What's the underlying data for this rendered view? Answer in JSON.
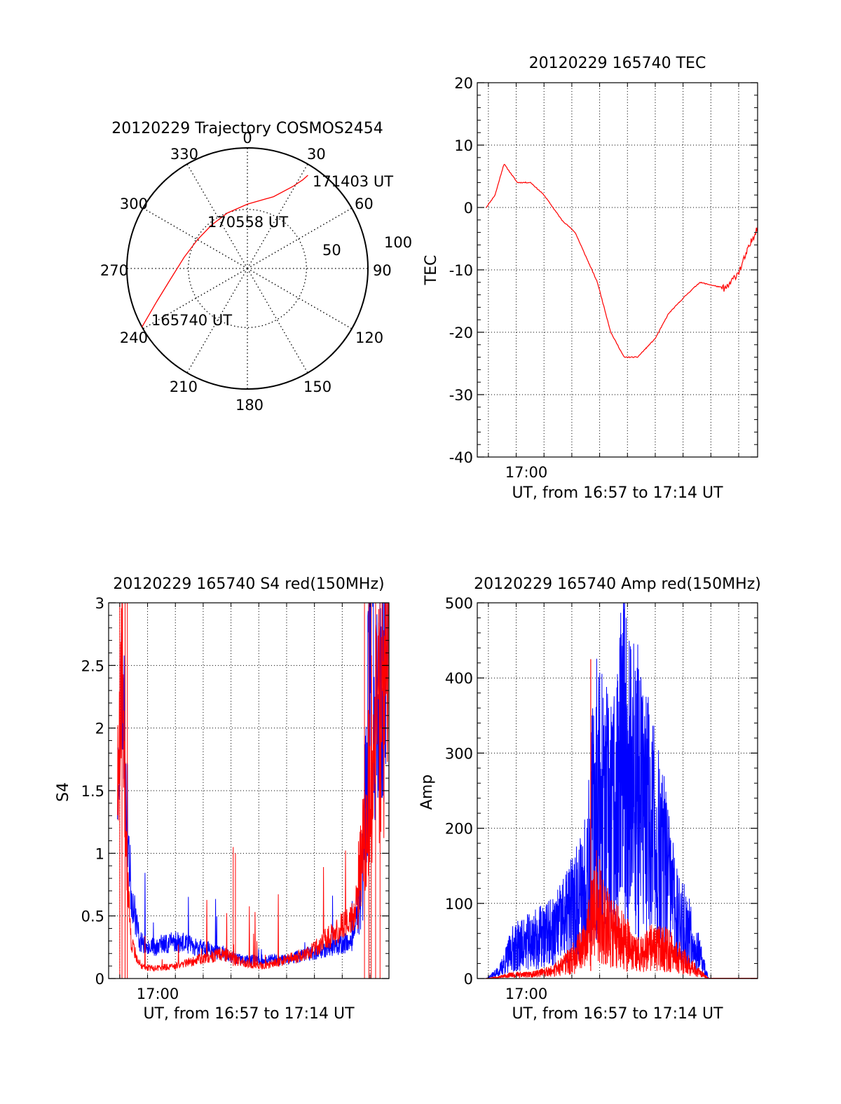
{
  "chart_data": [
    {
      "type": "polar",
      "title": "20120229 Trajectory COSMOS2454",
      "azimuth_labels": [
        "0",
        "30",
        "60",
        "90",
        "120",
        "150",
        "180",
        "210",
        "240",
        "270",
        "300",
        "330"
      ],
      "radial_labels": [
        "50",
        "100"
      ],
      "series": [
        {
          "color": "#ff0000",
          "points_az_el": [
            [
              241,
              0
            ],
            [
              250,
              18
            ],
            [
              262,
              32
            ],
            [
              280,
              42
            ],
            [
              300,
              47
            ],
            [
              320,
              48
            ],
            [
              340,
              46
            ],
            [
              0,
              42
            ],
            [
              20,
              33
            ],
            [
              29,
              20
            ],
            [
              32,
              12
            ],
            [
              33,
              7
            ]
          ]
        }
      ],
      "annotations": [
        {
          "text": "171403 UT",
          "az": 33,
          "el": 7
        },
        {
          "text": "170558 UT",
          "az": 338,
          "el": 50
        },
        {
          "text": "165740 UT",
          "az": 241,
          "el": 0
        }
      ]
    },
    {
      "type": "line",
      "title": "20120229 165740 TEC",
      "xlabel": "UT, from 16:57 to 17:14 UT",
      "ylabel": "TEC",
      "x_tick_labels": [
        {
          "minute": 17,
          "label": "17:00"
        }
      ],
      "xlim_minutes": [
        16.6,
        17.23
      ],
      "ylim": [
        -40,
        20
      ],
      "yticks": [
        -40,
        -30,
        -20,
        -10,
        0,
        10,
        20
      ],
      "grid": true,
      "series": [
        {
          "color": "#ff0000",
          "x_minutes": [
            16.62,
            16.64,
            16.66,
            16.69,
            16.72,
            16.75,
            16.79,
            16.82,
            16.87,
            16.9,
            16.93,
            16.96,
            17.0,
            17.03,
            17.07,
            17.1,
            17.13,
            17.16,
            17.19,
            17.23
          ],
          "y": [
            0,
            2,
            7,
            4,
            4,
            2,
            -2,
            -4,
            -12,
            -20,
            -24,
            -24,
            -21,
            -17,
            -14,
            -12,
            -12.5,
            -13,
            -10,
            -3
          ]
        }
      ]
    },
    {
      "type": "line",
      "title": "20120229 165740 S4 red(150MHz)",
      "xlabel": "UT, from 16:57 to 17:14 UT",
      "ylabel": "S4",
      "x_tick_labels": [
        {
          "minute": 17,
          "label": "17:00"
        }
      ],
      "xlim_minutes": [
        16.6,
        17.23
      ],
      "ylim": [
        0,
        3
      ],
      "yticks": [
        "0",
        "0.5",
        "1",
        "1.5",
        "2",
        "2.5",
        "3"
      ],
      "grid": true,
      "series": [
        {
          "color": "#0000ff",
          "x_minutes": [
            16.62,
            16.63,
            16.64,
            16.65,
            16.67,
            16.7,
            16.75,
            16.8,
            16.86,
            16.9,
            16.95,
            17.0,
            17.05,
            17.1,
            17.15,
            17.17,
            17.19,
            17.21,
            17.23
          ],
          "y": [
            1.5,
            2.5,
            1.5,
            0.7,
            0.3,
            0.25,
            0.3,
            0.25,
            0.2,
            0.15,
            0.15,
            0.15,
            0.2,
            0.25,
            0.3,
            0.8,
            2.6,
            2.3,
            2.8
          ]
        },
        {
          "color": "#ff0000",
          "x_minutes": [
            16.62,
            16.63,
            16.64,
            16.65,
            16.67,
            16.7,
            16.75,
            16.8,
            16.86,
            16.9,
            16.95,
            17.0,
            17.05,
            17.1,
            17.15,
            17.17,
            17.19,
            17.21,
            17.23
          ],
          "y": [
            1.5,
            2.5,
            1.0,
            0.3,
            0.1,
            0.08,
            0.1,
            0.15,
            0.2,
            0.12,
            0.1,
            0.15,
            0.2,
            0.35,
            0.5,
            1.0,
            1.8,
            2.0,
            2.5
          ]
        }
      ]
    },
    {
      "type": "line",
      "title": "20120229 165740 Amp red(150MHz)",
      "xlabel": "UT, from 16:57 to 17:14 UT",
      "ylabel": "Amp",
      "x_tick_labels": [
        {
          "minute": 17,
          "label": "17:00"
        }
      ],
      "xlim_minutes": [
        16.6,
        17.23
      ],
      "ylim": [
        0,
        500
      ],
      "yticks": [
        0,
        100,
        200,
        300,
        400,
        500
      ],
      "grid": true,
      "series": [
        {
          "color": "#0000ff",
          "x_minutes": [
            16.62,
            16.65,
            16.68,
            16.72,
            16.77,
            16.8,
            16.84,
            16.87,
            16.9,
            16.93,
            16.96,
            16.99,
            17.02,
            17.05,
            17.08,
            17.12,
            17.15,
            17.23
          ],
          "y": [
            0,
            10,
            40,
            50,
            60,
            80,
            120,
            250,
            200,
            300,
            250,
            200,
            150,
            80,
            60,
            0,
            0,
            0
          ]
        },
        {
          "color": "#ff0000",
          "x_minutes": [
            16.62,
            16.65,
            16.68,
            16.72,
            16.77,
            16.8,
            16.84,
            16.87,
            16.9,
            16.93,
            16.96,
            16.99,
            17.02,
            17.05,
            17.08,
            17.12,
            17.15,
            17.23
          ],
          "y": [
            0,
            2,
            5,
            5,
            10,
            20,
            40,
            100,
            60,
            50,
            30,
            40,
            40,
            30,
            15,
            0,
            0,
            0
          ]
        }
      ]
    }
  ]
}
